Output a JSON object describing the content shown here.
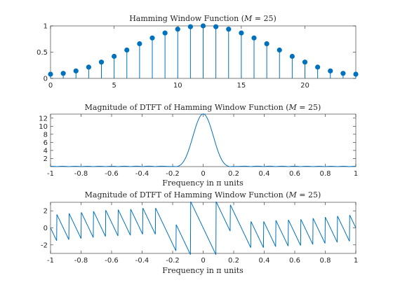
{
  "color_series": "#0072bd",
  "chart_data": [
    {
      "type": "stem",
      "title": "Hamming Window Function (M = 25)",
      "title_prefix": "Hamming Window Function (",
      "title_var": "M",
      "title_suffix": " = 25)",
      "xlabel": "",
      "ylabel": "",
      "xlim": [
        0,
        24
      ],
      "ylim": [
        0,
        1
      ],
      "xticks": [
        0,
        5,
        10,
        15,
        20
      ],
      "xtick_labels": [
        "0",
        "5",
        "10",
        "15",
        "20"
      ],
      "yticks": [
        0,
        0.5,
        1
      ],
      "ytick_labels": [
        "0",
        "0.5",
        "1"
      ],
      "x": [
        0,
        1,
        2,
        3,
        4,
        5,
        6,
        7,
        8,
        9,
        10,
        11,
        12,
        13,
        14,
        15,
        16,
        17,
        18,
        19,
        20,
        21,
        22,
        23,
        24
      ],
      "values": [
        0.08,
        0.096,
        0.142,
        0.215,
        0.311,
        0.42,
        0.54,
        0.66,
        0.77,
        0.865,
        0.938,
        0.984,
        1.0,
        0.984,
        0.938,
        0.865,
        0.77,
        0.66,
        0.54,
        0.42,
        0.311,
        0.215,
        0.142,
        0.096,
        0.08
      ]
    },
    {
      "type": "line",
      "title": "Magnitude of DTFT of Hamming Window Function (M = 25)",
      "title_prefix": "Magnitude of DTFT of Hamming Window Function (",
      "title_var": "M",
      "title_suffix": " = 25)",
      "xlabel": "Frequency in π units",
      "ylabel": "",
      "xlim": [
        -1,
        1
      ],
      "ylim": [
        0,
        13
      ],
      "xticks": [
        -1,
        -0.8,
        -0.6,
        -0.4,
        -0.2,
        0,
        0.2,
        0.4,
        0.6,
        0.8,
        1
      ],
      "xtick_labels": [
        "-1",
        "-0.8",
        "-0.6",
        "-0.4",
        "-0.2",
        "0",
        "0.2",
        "0.4",
        "0.6",
        "0.8",
        "1"
      ],
      "yticks": [
        2,
        4,
        6,
        8,
        10,
        12
      ],
      "ytick_labels": [
        "2",
        "4",
        "6",
        "8",
        "10",
        "12"
      ],
      "window": [
        0.08,
        0.096,
        0.142,
        0.215,
        0.311,
        0.42,
        0.54,
        0.66,
        0.77,
        0.865,
        0.938,
        0.984,
        1.0,
        0.984,
        0.938,
        0.865,
        0.77,
        0.66,
        0.54,
        0.42,
        0.311,
        0.215,
        0.142,
        0.096,
        0.08
      ],
      "samples": 501,
      "quantity": "magnitude"
    },
    {
      "type": "line",
      "title": "Magnitude of DTFT of Hamming Window Function (M = 25)",
      "title_prefix": "Magnitude of DTFT of Hamming Window Function (",
      "title_var": "M",
      "title_suffix": " = 25)",
      "xlabel": "Frequency in π units",
      "ylabel": "",
      "xlim": [
        -1,
        1
      ],
      "ylim": [
        -3,
        3
      ],
      "xticks": [
        -1,
        -0.8,
        -0.6,
        -0.4,
        -0.2,
        0,
        0.2,
        0.4,
        0.6,
        0.8,
        1
      ],
      "xtick_labels": [
        "-1",
        "-0.8",
        "-0.6",
        "-0.4",
        "-0.2",
        "0",
        "0.2",
        "0.4",
        "0.6",
        "0.8",
        "1"
      ],
      "yticks": [
        -2,
        0,
        2
      ],
      "ytick_labels": [
        "-2",
        "0",
        "2"
      ],
      "window": [
        0.08,
        0.096,
        0.142,
        0.215,
        0.311,
        0.42,
        0.54,
        0.66,
        0.77,
        0.865,
        0.938,
        0.984,
        1.0,
        0.984,
        0.938,
        0.865,
        0.77,
        0.66,
        0.54,
        0.42,
        0.311,
        0.215,
        0.142,
        0.096,
        0.08
      ],
      "samples": 1201,
      "quantity": "phase"
    }
  ]
}
